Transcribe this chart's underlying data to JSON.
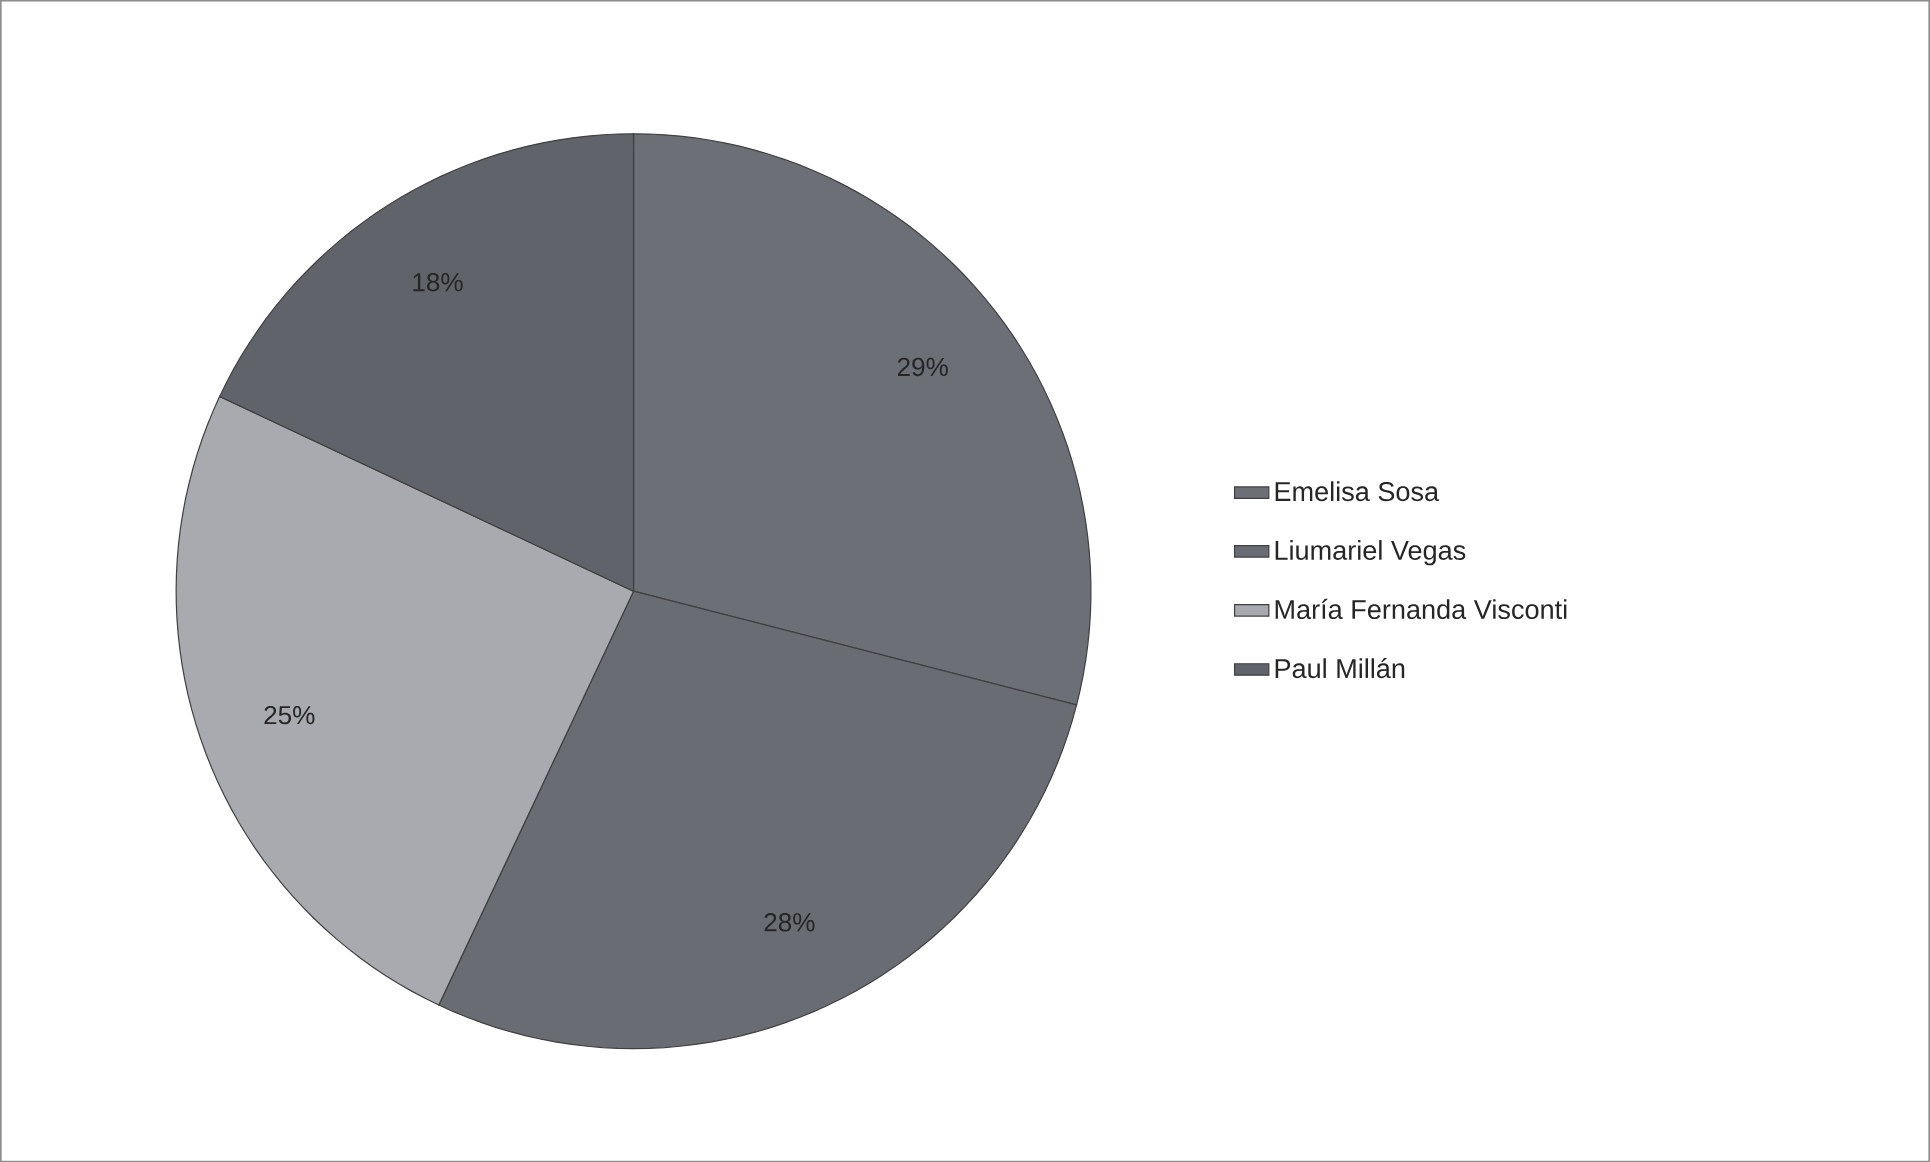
{
  "chart_data": {
    "type": "pie",
    "categories": [
      "Emelisa Sosa",
      "Liumariel Vegas",
      "María Fernanda Visconti",
      "Paul Millán"
    ],
    "values": [
      29,
      28,
      25,
      18
    ],
    "colors": [
      "#6c6f76",
      "#696c73",
      "#a8aab0",
      "#606369"
    ],
    "value_labels": [
      "29%",
      "28%",
      "25%",
      "18%"
    ],
    "legend": "right"
  }
}
